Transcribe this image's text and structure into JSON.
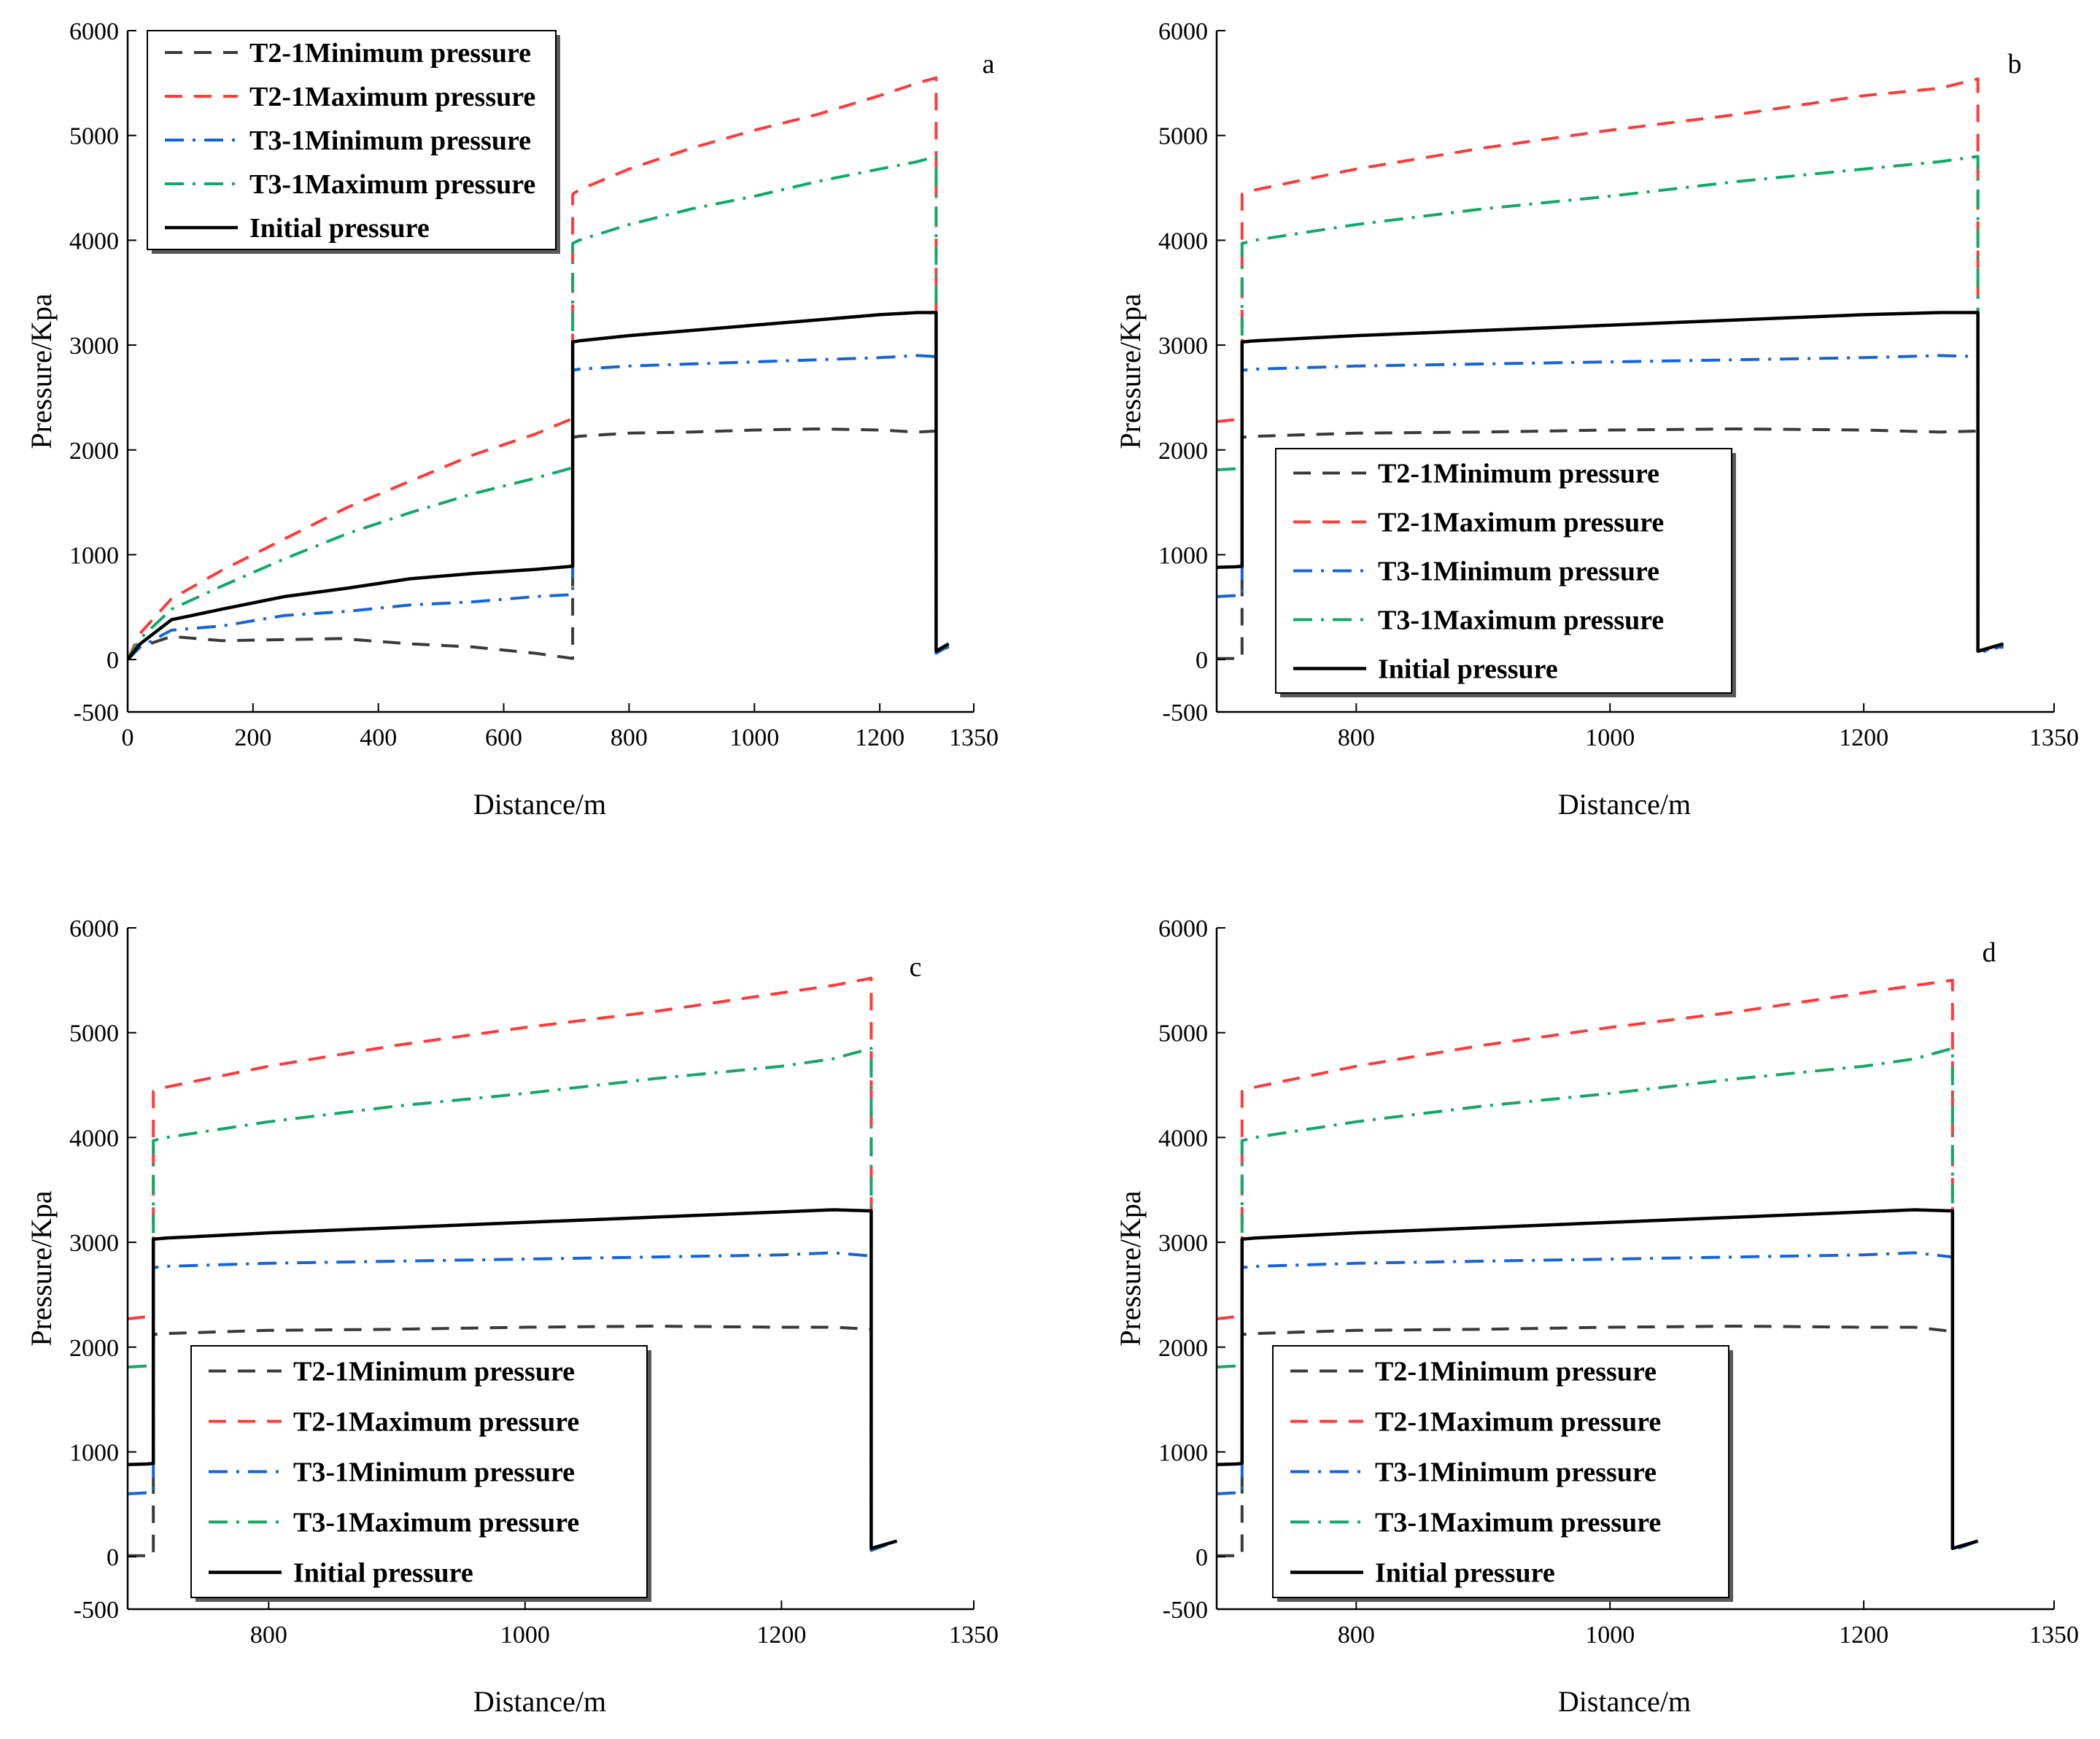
{
  "figure": {
    "x_axis_title": "Distance/m",
    "y_axis_title": "Pressure/Kpa"
  },
  "colors": {
    "T2-1Minimum pressure": "#3a3a3a",
    "T2-1Maximum pressure": "#ff3b3b",
    "T3-1Minimum pressure": "#1565d8",
    "T3-1Maximum pressure": "#12a86a",
    "Initial pressure": "#000000"
  },
  "chart_data": [
    {
      "type": "line",
      "panel_label": "a",
      "xlabel": "Distance/m",
      "ylabel": "Pressure/Kpa",
      "xlim": [
        0,
        1350
      ],
      "ylim": [
        -500,
        6000
      ],
      "xticks": [
        "0",
        "200",
        "400",
        "600",
        "800",
        "1000",
        "1200",
        "1350"
      ],
      "yticks": [
        "-500",
        "0",
        "1000",
        "2000",
        "3000",
        "4000",
        "5000",
        "6000"
      ],
      "legend_position": "top-left",
      "series": [
        {
          "name": "T2-1Minimum pressure",
          "style": "dashed",
          "x": [
            0,
            20,
            70,
            150,
            250,
            340,
            450,
            550,
            650,
            710,
            710,
            720,
            800,
            900,
            1000,
            1100,
            1200,
            1260,
            1290,
            1290,
            1310
          ],
          "y": [
            0,
            120,
            220,
            180,
            190,
            200,
            150,
            120,
            60,
            10,
            2120,
            2130,
            2160,
            2170,
            2190,
            2200,
            2190,
            2170,
            2180,
            80,
            120
          ]
        },
        {
          "name": "T2-1Maximum pressure",
          "style": "dashed",
          "x": [
            0,
            20,
            70,
            150,
            250,
            350,
            450,
            550,
            650,
            710,
            710,
            720,
            800,
            900,
            1000,
            1100,
            1200,
            1260,
            1290,
            1290,
            1310
          ],
          "y": [
            0,
            250,
            580,
            850,
            1150,
            1450,
            1700,
            1950,
            2150,
            2300,
            4440,
            4480,
            4680,
            4880,
            5050,
            5200,
            5380,
            5500,
            5550,
            80,
            150
          ]
        },
        {
          "name": "T3-1Minimum pressure",
          "style": "dashdot",
          "x": [
            0,
            20,
            70,
            150,
            250,
            350,
            450,
            550,
            650,
            710,
            710,
            720,
            800,
            900,
            1000,
            1100,
            1200,
            1260,
            1290,
            1290,
            1310
          ],
          "y": [
            0,
            120,
            280,
            320,
            420,
            460,
            520,
            550,
            600,
            620,
            2760,
            2770,
            2800,
            2820,
            2840,
            2860,
            2880,
            2900,
            2890,
            60,
            130
          ]
        },
        {
          "name": "T3-1Maximum pressure",
          "style": "dashdot",
          "x": [
            0,
            20,
            70,
            150,
            250,
            350,
            450,
            550,
            650,
            710,
            710,
            720,
            800,
            900,
            1000,
            1100,
            1200,
            1260,
            1290,
            1290,
            1310
          ],
          "y": [
            0,
            200,
            480,
            700,
            960,
            1200,
            1400,
            1580,
            1730,
            1830,
            3970,
            4000,
            4150,
            4300,
            4420,
            4560,
            4680,
            4750,
            4800,
            80,
            150
          ]
        },
        {
          "name": "Initial pressure",
          "style": "solid",
          "x": [
            0,
            20,
            70,
            150,
            250,
            350,
            450,
            550,
            650,
            710,
            710,
            720,
            800,
            900,
            1000,
            1100,
            1200,
            1260,
            1290,
            1290,
            1310
          ],
          "y": [
            0,
            150,
            380,
            480,
            600,
            680,
            770,
            820,
            860,
            890,
            3030,
            3040,
            3090,
            3140,
            3190,
            3240,
            3290,
            3310,
            3310,
            80,
            150
          ]
        }
      ]
    },
    {
      "type": "line",
      "panel_label": "b",
      "xlabel": "Distance/m",
      "ylabel": "Pressure/Kpa",
      "xlim": [
        690,
        1350
      ],
      "ylim": [
        -500,
        6000
      ],
      "xticks": [
        "800",
        "1000",
        "1200",
        "1350"
      ],
      "yticks": [
        "-500",
        "0",
        "1000",
        "2000",
        "3000",
        "4000",
        "5000",
        "6000"
      ],
      "legend_position": "lower-left",
      "series": [
        {
          "name": "T2-1Minimum pressure",
          "style": "dashed",
          "x": [
            690,
            705,
            710,
            710,
            720,
            800,
            900,
            1000,
            1100,
            1200,
            1260,
            1290,
            1290,
            1310
          ],
          "y": [
            10,
            10,
            10,
            2120,
            2130,
            2160,
            2170,
            2190,
            2200,
            2190,
            2170,
            2180,
            80,
            120
          ]
        },
        {
          "name": "T2-1Maximum pressure",
          "style": "dashed",
          "x": [
            690,
            705,
            710,
            710,
            720,
            800,
            900,
            1000,
            1100,
            1200,
            1260,
            1290,
            1290,
            1310
          ],
          "y": [
            2270,
            2290,
            2300,
            4440,
            4480,
            4680,
            4880,
            5050,
            5200,
            5380,
            5450,
            5540,
            80,
            150
          ]
        },
        {
          "name": "T3-1Minimum pressure",
          "style": "dashdot",
          "x": [
            690,
            705,
            710,
            710,
            720,
            800,
            900,
            1000,
            1100,
            1200,
            1260,
            1290,
            1290,
            1310
          ],
          "y": [
            600,
            610,
            620,
            2760,
            2770,
            2800,
            2820,
            2840,
            2860,
            2880,
            2900,
            2890,
            60,
            130
          ]
        },
        {
          "name": "T3-1Maximum pressure",
          "style": "dashdot",
          "x": [
            690,
            705,
            710,
            710,
            720,
            800,
            900,
            1000,
            1100,
            1200,
            1260,
            1290,
            1290,
            1310
          ],
          "y": [
            1810,
            1820,
            1830,
            3970,
            4000,
            4150,
            4300,
            4420,
            4560,
            4680,
            4750,
            4800,
            80,
            150
          ]
        },
        {
          "name": "Initial pressure",
          "style": "solid",
          "x": [
            690,
            705,
            710,
            710,
            720,
            800,
            900,
            1000,
            1100,
            1200,
            1260,
            1290,
            1290,
            1310
          ],
          "y": [
            880,
            885,
            890,
            3030,
            3040,
            3090,
            3140,
            3190,
            3240,
            3290,
            3310,
            3310,
            80,
            150
          ]
        }
      ]
    },
    {
      "type": "line",
      "panel_label": "c",
      "xlabel": "Distance/m",
      "ylabel": "Pressure/Kpa",
      "xlim": [
        690,
        1350
      ],
      "ylim": [
        -500,
        6000
      ],
      "xticks": [
        "800",
        "1000",
        "1200",
        "1350"
      ],
      "yticks": [
        "-500",
        "0",
        "1000",
        "2000",
        "3000",
        "4000",
        "5000",
        "6000"
      ],
      "legend_position": "lower-left",
      "series": [
        {
          "name": "T2-1Minimum pressure",
          "style": "dashed",
          "x": [
            690,
            705,
            710,
            710,
            720,
            800,
            900,
            1000,
            1100,
            1200,
            1240,
            1270,
            1270,
            1290
          ],
          "y": [
            10,
            10,
            10,
            2120,
            2130,
            2160,
            2170,
            2190,
            2200,
            2190,
            2190,
            2170,
            80,
            150
          ]
        },
        {
          "name": "T2-1Maximum pressure",
          "style": "dashed",
          "x": [
            690,
            705,
            710,
            710,
            720,
            800,
            900,
            1000,
            1100,
            1200,
            1240,
            1270,
            1270,
            1290
          ],
          "y": [
            2270,
            2290,
            2300,
            4440,
            4480,
            4680,
            4880,
            5050,
            5200,
            5380,
            5450,
            5520,
            80,
            150
          ]
        },
        {
          "name": "T3-1Minimum pressure",
          "style": "dashdot",
          "x": [
            690,
            705,
            710,
            710,
            720,
            800,
            900,
            1000,
            1100,
            1200,
            1240,
            1270,
            1270,
            1290
          ],
          "y": [
            600,
            610,
            620,
            2760,
            2770,
            2800,
            2820,
            2840,
            2860,
            2880,
            2900,
            2870,
            60,
            150
          ]
        },
        {
          "name": "T3-1Maximum pressure",
          "style": "dashdot",
          "x": [
            690,
            705,
            710,
            710,
            720,
            800,
            900,
            1000,
            1100,
            1200,
            1240,
            1270,
            1270,
            1290
          ],
          "y": [
            1810,
            1820,
            1830,
            3970,
            4000,
            4150,
            4300,
            4420,
            4560,
            4680,
            4750,
            4850,
            80,
            150
          ]
        },
        {
          "name": "Initial pressure",
          "style": "solid",
          "x": [
            690,
            705,
            710,
            710,
            720,
            800,
            900,
            1000,
            1100,
            1200,
            1240,
            1270,
            1270,
            1290
          ],
          "y": [
            880,
            885,
            890,
            3030,
            3040,
            3090,
            3140,
            3190,
            3240,
            3290,
            3310,
            3300,
            80,
            150
          ]
        }
      ]
    },
    {
      "type": "line",
      "panel_label": "d",
      "xlabel": "Distance/m",
      "ylabel": "Pressure/Kpa",
      "xlim": [
        690,
        1350
      ],
      "ylim": [
        -500,
        6000
      ],
      "xticks": [
        "800",
        "1000",
        "1200",
        "1350"
      ],
      "yticks": [
        "-500",
        "0",
        "1000",
        "2000",
        "3000",
        "4000",
        "5000",
        "6000"
      ],
      "legend_position": "lower-left",
      "series": [
        {
          "name": "T2-1Minimum pressure",
          "style": "dashed",
          "x": [
            690,
            705,
            710,
            710,
            720,
            800,
            900,
            1000,
            1100,
            1200,
            1240,
            1270,
            1270,
            1290
          ],
          "y": [
            10,
            10,
            10,
            2120,
            2130,
            2160,
            2170,
            2190,
            2200,
            2190,
            2190,
            2150,
            80,
            150
          ]
        },
        {
          "name": "T2-1Maximum pressure",
          "style": "dashed",
          "x": [
            690,
            705,
            710,
            710,
            720,
            800,
            900,
            1000,
            1100,
            1200,
            1240,
            1270,
            1270,
            1290
          ],
          "y": [
            2270,
            2290,
            2300,
            4440,
            4480,
            4680,
            4880,
            5050,
            5200,
            5380,
            5450,
            5500,
            80,
            150
          ]
        },
        {
          "name": "T3-1Minimum pressure",
          "style": "dashdot",
          "x": [
            690,
            705,
            710,
            710,
            720,
            800,
            900,
            1000,
            1100,
            1200,
            1240,
            1270,
            1270,
            1290
          ],
          "y": [
            600,
            610,
            620,
            2760,
            2770,
            2800,
            2820,
            2840,
            2860,
            2880,
            2900,
            2860,
            60,
            150
          ]
        },
        {
          "name": "T3-1Maximum pressure",
          "style": "dashdot",
          "x": [
            690,
            705,
            710,
            710,
            720,
            800,
            900,
            1000,
            1100,
            1200,
            1240,
            1270,
            1270,
            1290
          ],
          "y": [
            1810,
            1820,
            1830,
            3970,
            4000,
            4150,
            4300,
            4420,
            4560,
            4680,
            4750,
            4850,
            80,
            150
          ]
        },
        {
          "name": "Initial pressure",
          "style": "solid",
          "x": [
            690,
            705,
            710,
            710,
            720,
            800,
            900,
            1000,
            1100,
            1200,
            1240,
            1270,
            1270,
            1290
          ],
          "y": [
            880,
            885,
            890,
            3030,
            3040,
            3090,
            3140,
            3190,
            3240,
            3290,
            3310,
            3300,
            80,
            150
          ]
        }
      ]
    }
  ]
}
